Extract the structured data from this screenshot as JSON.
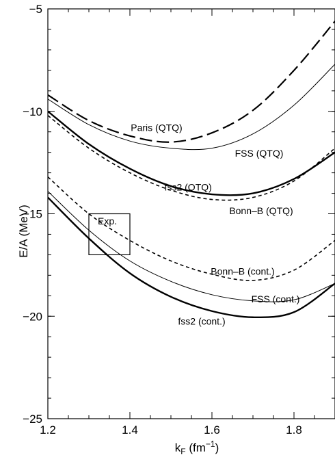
{
  "chart_data": {
    "type": "line",
    "xlabel": "k",
    "xlabel_sub": "F",
    "xlabel_unit_open": " (fm",
    "xlabel_unit_sup": "−1",
    "xlabel_unit_close": ")",
    "ylabel": "E/A (MeV)",
    "xlim": [
      1.2,
      1.9
    ],
    "ylim": [
      -25,
      -5
    ],
    "xticks": [
      1.2,
      1.4,
      1.6,
      1.8
    ],
    "xtick_labels": [
      "1.2",
      "1.4",
      "1.6",
      "1.8"
    ],
    "yticks": [
      -25,
      -20,
      -15,
      -10,
      -5
    ],
    "ytick_labels": [
      "−25",
      "−20",
      "−15",
      "−10",
      "−5"
    ],
    "grid": false,
    "series": [
      {
        "name": "Paris (QTQ)",
        "style": "long-dash",
        "width": 2.2,
        "x": [
          1.2,
          1.3,
          1.4,
          1.5,
          1.6,
          1.7,
          1.8,
          1.9
        ],
        "y": [
          -9.2,
          -10.45,
          -11.2,
          -11.5,
          -11.05,
          -9.95,
          -8.0,
          -5.6
        ]
      },
      {
        "name": "FSS (QTQ)",
        "style": "solid",
        "width": 1.0,
        "x": [
          1.2,
          1.3,
          1.4,
          1.5,
          1.6,
          1.7,
          1.8,
          1.9
        ],
        "y": [
          -9.4,
          -10.65,
          -11.45,
          -11.8,
          -11.8,
          -11.1,
          -9.7,
          -7.7
        ]
      },
      {
        "name": "fss2 (QTQ)",
        "style": "solid",
        "width": 2.4,
        "x": [
          1.2,
          1.3,
          1.4,
          1.5,
          1.6,
          1.7,
          1.8,
          1.9
        ],
        "y": [
          -10.0,
          -11.6,
          -12.8,
          -13.65,
          -14.05,
          -14.0,
          -13.3,
          -12.0
        ]
      },
      {
        "name": "Bonn–B (QTQ)",
        "style": "short-dash",
        "width": 1.6,
        "x": [
          1.2,
          1.3,
          1.4,
          1.5,
          1.6,
          1.7,
          1.8,
          1.9
        ],
        "y": [
          -10.2,
          -11.8,
          -13.0,
          -13.85,
          -14.3,
          -14.2,
          -13.4,
          -11.8
        ]
      },
      {
        "name": "Bonn–B (cont.)",
        "style": "short-dash",
        "width": 1.6,
        "x": [
          1.2,
          1.3,
          1.4,
          1.5,
          1.6,
          1.7,
          1.8,
          1.9
        ],
        "y": [
          -13.2,
          -15.0,
          -16.3,
          -17.3,
          -17.95,
          -18.25,
          -17.75,
          -16.3
        ]
      },
      {
        "name": "FSS (cont.)",
        "style": "solid",
        "width": 1.0,
        "x": [
          1.2,
          1.3,
          1.4,
          1.5,
          1.6,
          1.7,
          1.8,
          1.9
        ],
        "y": [
          -13.9,
          -15.8,
          -17.3,
          -18.3,
          -18.95,
          -19.25,
          -19.2,
          -18.4
        ]
      },
      {
        "name": "fss2 (cont.)",
        "style": "solid",
        "width": 2.4,
        "x": [
          1.2,
          1.3,
          1.4,
          1.5,
          1.6,
          1.7,
          1.8,
          1.9
        ],
        "y": [
          -14.2,
          -16.2,
          -17.9,
          -19.05,
          -19.75,
          -20.05,
          -19.8,
          -18.4
        ]
      }
    ],
    "annotations": [
      {
        "text": "Paris (QTQ)",
        "x": 1.465,
        "y": -10.8
      },
      {
        "text": "FSS (QTQ)",
        "x": 1.715,
        "y": -12.05
      },
      {
        "text": "fss2 (QTQ)",
        "x": 1.542,
        "y": -13.7
      },
      {
        "text": "Bonn–B (QTQ)",
        "x": 1.72,
        "y": -14.85
      },
      {
        "text": "Exp.",
        "x": 1.345,
        "y": -15.35
      },
      {
        "text": "Bonn–B (cont.)",
        "x": 1.675,
        "y": -17.8
      },
      {
        "text": "FSS (cont.)",
        "x": 1.755,
        "y": -19.15
      },
      {
        "text": "fss2 (cont.)",
        "x": 1.575,
        "y": -20.25
      }
    ],
    "exp_box": {
      "label": "Exp.",
      "x": [
        1.3,
        1.4
      ],
      "y": [
        -17,
        -15
      ]
    }
  }
}
